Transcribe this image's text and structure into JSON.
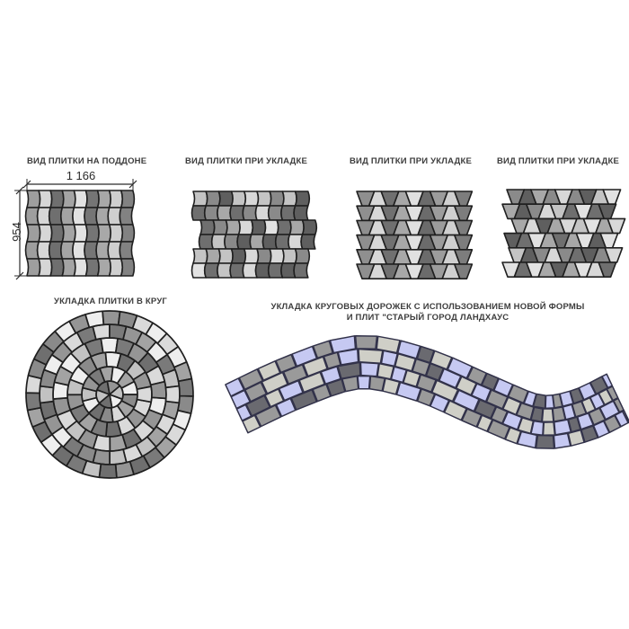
{
  "sheet": {
    "description": "Paving tile laying schemes sheet"
  },
  "panels": {
    "pallet": {
      "title": "ВИД ПЛИТКИ НА ПОДДОНЕ",
      "dim_width": "1 166",
      "dim_height": "954"
    },
    "laying1": {
      "title": "ВИД ПЛИТКИ ПРИ УКЛАДКЕ"
    },
    "laying2": {
      "title": "ВИД ПЛИТКИ ПРИ УКЛАДКЕ"
    },
    "laying3": {
      "title": "ВИД ПЛИТКИ ПРИ УКЛАДКЕ"
    },
    "circle": {
      "title": "УКЛАДКА ПЛИТКИ В КРУГ"
    },
    "path": {
      "title_line1": "УКЛАДКА КРУГОВЫХ ДОРОЖЕК С ИСПОЛЬЗОВАНИЕМ НОВОЙ ФОРМЫ",
      "title_line2": "И ПЛИТ \"СТАРЫЙ ГОРОД ЛАНДХАУС"
    }
  },
  "colors": {
    "background": "#ffffff",
    "outline": "#1f1f1f",
    "path_outline": "#32324a",
    "dimension_line": "#2b2b2b",
    "title_text": "#3d3d3d"
  },
  "palettes": {
    "pallet_columns": [
      "#9e9e9e",
      "#d6d6d6",
      "#6f6f6f",
      "#a4a4a4",
      "#e2e2e2",
      "#757575",
      "#a8a8a8",
      "#cfcfcf",
      "#828282"
    ],
    "laying_columns": [
      "#8f8f8f",
      "#d8d8d8",
      "#707070",
      "#a8a8a8",
      "#e0e0e0",
      "#6b6b6b",
      "#9c9c9c",
      "#d0d0d0",
      "#7d7d7d"
    ],
    "gray_mix": [
      "#d8d8d8",
      "#a8a8a8",
      "#6f6f6f",
      "#c4c4c4",
      "#8a8a8a",
      "#5f5f5f",
      "#e2e2e2"
    ],
    "circle_mix": [
      "#6f6f6f",
      "#8a8a8a",
      "#a3a3a3",
      "#c2c2c2",
      "#dadada",
      "#eeeeee",
      "#959595",
      "#7a7a7a"
    ],
    "path_mix": {
      "lavender": "#c6c9f2",
      "light": "#cfcfc7",
      "medium": "#9a9a9a",
      "dark": "#6a6a70"
    }
  }
}
